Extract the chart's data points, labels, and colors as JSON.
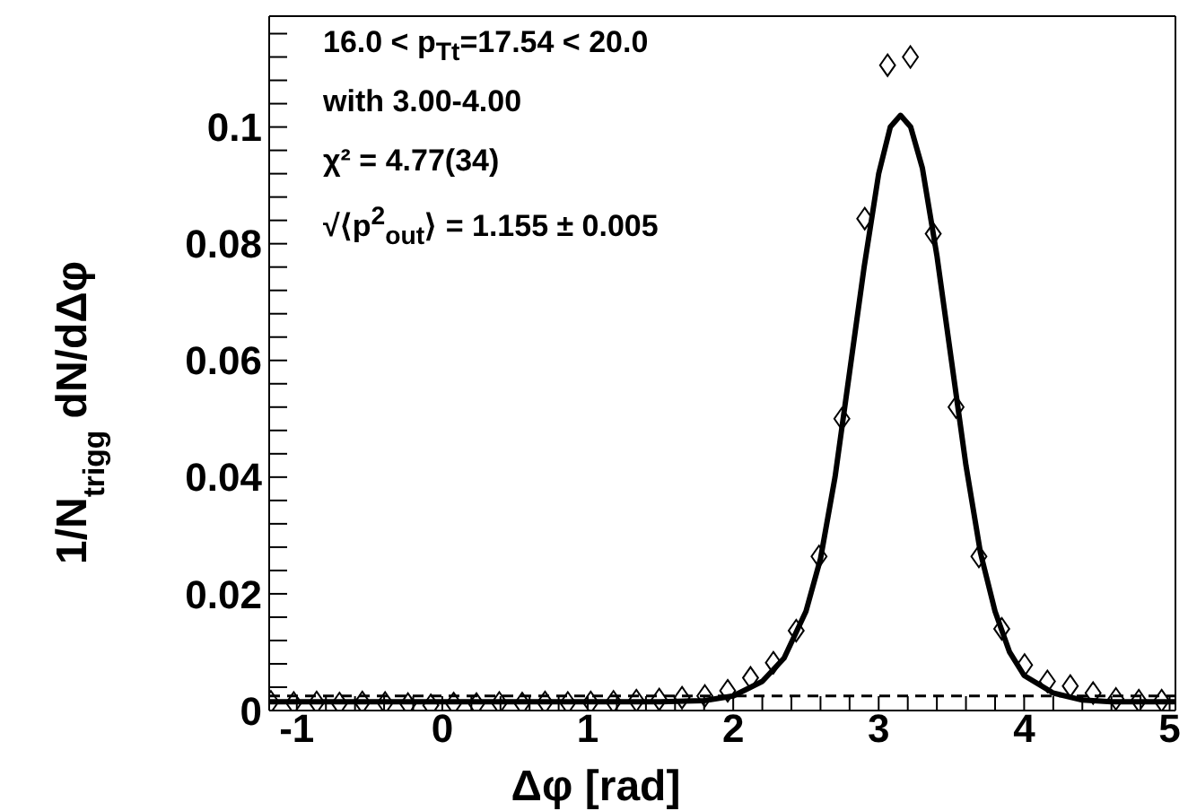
{
  "chart_data": {
    "type": "scatter",
    "xlabel": "Δφ    [rad]",
    "ylabel": "1/N$_{trigg}$ dN/dΔφ",
    "annotations": [
      "16.0 < p$_{Tt}$=17.54 < 20.0",
      "with 3.00-4.00",
      "χ² = 4.77(34)",
      "√⟨p$^{2}$$_{out}$⟩ = 1.155 ± 0.005"
    ],
    "xlim": [
      -1.19,
      5.04
    ],
    "ylim": [
      0,
      0.119
    ],
    "xticks": [
      -1,
      {
        "value": -0.8,
        "label": null
      },
      {
        "value": -0.6,
        "label": null
      },
      {
        "value": -0.4,
        "label": null
      },
      {
        "value": -0.2,
        "label": null
      },
      0,
      {
        "value": 0.2,
        "label": null
      },
      {
        "value": 0.4,
        "label": null
      },
      {
        "value": 0.6,
        "label": null
      },
      {
        "value": 0.8,
        "label": null
      },
      1,
      {
        "value": 1.2,
        "label": null
      },
      {
        "value": 1.4,
        "label": null
      },
      {
        "value": 1.6,
        "label": null
      },
      {
        "value": 1.8,
        "label": null
      },
      2,
      {
        "value": 2.2,
        "label": null
      },
      {
        "value": 2.4,
        "label": null
      },
      {
        "value": 2.6,
        "label": null
      },
      {
        "value": 2.8,
        "label": null
      },
      3,
      {
        "value": 3.2,
        "label": null
      },
      {
        "value": 3.4,
        "label": null
      },
      {
        "value": 3.6,
        "label": null
      },
      {
        "value": 3.8,
        "label": null
      },
      4,
      {
        "value": 4.2,
        "label": null
      },
      {
        "value": 4.4,
        "label": null
      },
      {
        "value": 4.6,
        "label": null
      },
      {
        "value": 4.8,
        "label": null
      },
      5
    ],
    "yticks": [
      0,
      {
        "value": 0.004,
        "label": null
      },
      {
        "value": 0.008,
        "label": null
      },
      {
        "value": 0.012,
        "label": null
      },
      {
        "value": 0.016,
        "label": null
      },
      0.02,
      {
        "value": 0.024,
        "label": null
      },
      {
        "value": 0.028,
        "label": null
      },
      {
        "value": 0.032,
        "label": null
      },
      {
        "value": 0.036,
        "label": null
      },
      0.04,
      {
        "value": 0.044,
        "label": null
      },
      {
        "value": 0.048,
        "label": null
      },
      {
        "value": 0.052,
        "label": null
      },
      {
        "value": 0.056,
        "label": null
      },
      0.06,
      {
        "value": 0.064,
        "label": null
      },
      {
        "value": 0.068,
        "label": null
      },
      {
        "value": 0.072,
        "label": null
      },
      {
        "value": 0.076,
        "label": null
      },
      0.08,
      {
        "value": 0.084,
        "label": null
      },
      {
        "value": 0.088,
        "label": null
      },
      {
        "value": 0.092,
        "label": null
      },
      {
        "value": 0.096,
        "label": null
      },
      0.1,
      {
        "value": 0.104,
        "label": null
      },
      {
        "value": 0.108,
        "label": null
      },
      {
        "value": 0.112,
        "label": null
      },
      {
        "value": 0.116,
        "label": null
      }
    ],
    "ref_lines": [
      {
        "axis": "y",
        "value": 0.0025,
        "line_style": "dashed",
        "color": "#000000"
      }
    ],
    "series": [
      {
        "marker": "diamond",
        "color": "#000000",
        "x": [
          -1.178,
          -1.021,
          -0.864,
          -0.707,
          -0.55,
          -0.393,
          -0.236,
          -0.079,
          0.078,
          0.235,
          0.392,
          0.549,
          0.706,
          0.863,
          1.02,
          1.177,
          1.334,
          1.491,
          1.648,
          1.805,
          1.962,
          2.119,
          2.276,
          2.433,
          2.59,
          2.747,
          2.904,
          3.061,
          3.218,
          3.375,
          3.532,
          3.689,
          3.846,
          4.003,
          4.16,
          4.317,
          4.474,
          4.631,
          4.788,
          4.945
        ],
        "values": [
          0.0015,
          0.0013,
          0.0014,
          0.0012,
          0.0014,
          0.0013,
          0.0011,
          0.0009,
          0.0012,
          0.0011,
          0.0013,
          0.0012,
          0.0014,
          0.0013,
          0.0014,
          0.0015,
          0.0017,
          0.0019,
          0.0022,
          0.0025,
          0.0034,
          0.0056,
          0.0082,
          0.0137,
          0.0264,
          0.05,
          0.0843,
          0.1106,
          0.112,
          0.0817,
          0.052,
          0.0264,
          0.014,
          0.0078,
          0.005,
          0.0042,
          0.003,
          0.002,
          0.0017,
          0.0017
        ]
      },
      {
        "type": "line",
        "marker": "none",
        "line_style": "solid",
        "color": "#000000",
        "x": [
          -1.19,
          1.5,
          1.8,
          2.0,
          2.2,
          2.35,
          2.5,
          2.6,
          2.7,
          2.8,
          2.9,
          3.0,
          3.08,
          3.15,
          3.22,
          3.3,
          3.4,
          3.5,
          3.6,
          3.7,
          3.8,
          3.9,
          4.0,
          4.2,
          4.4,
          4.6,
          5.04
        ],
        "values": [
          0.0015,
          0.0015,
          0.0017,
          0.0025,
          0.005,
          0.009,
          0.017,
          0.026,
          0.04,
          0.058,
          0.076,
          0.092,
          0.1,
          0.102,
          0.1,
          0.093,
          0.078,
          0.06,
          0.042,
          0.027,
          0.017,
          0.01,
          0.006,
          0.003,
          0.0018,
          0.0015,
          0.0015
        ]
      }
    ]
  }
}
